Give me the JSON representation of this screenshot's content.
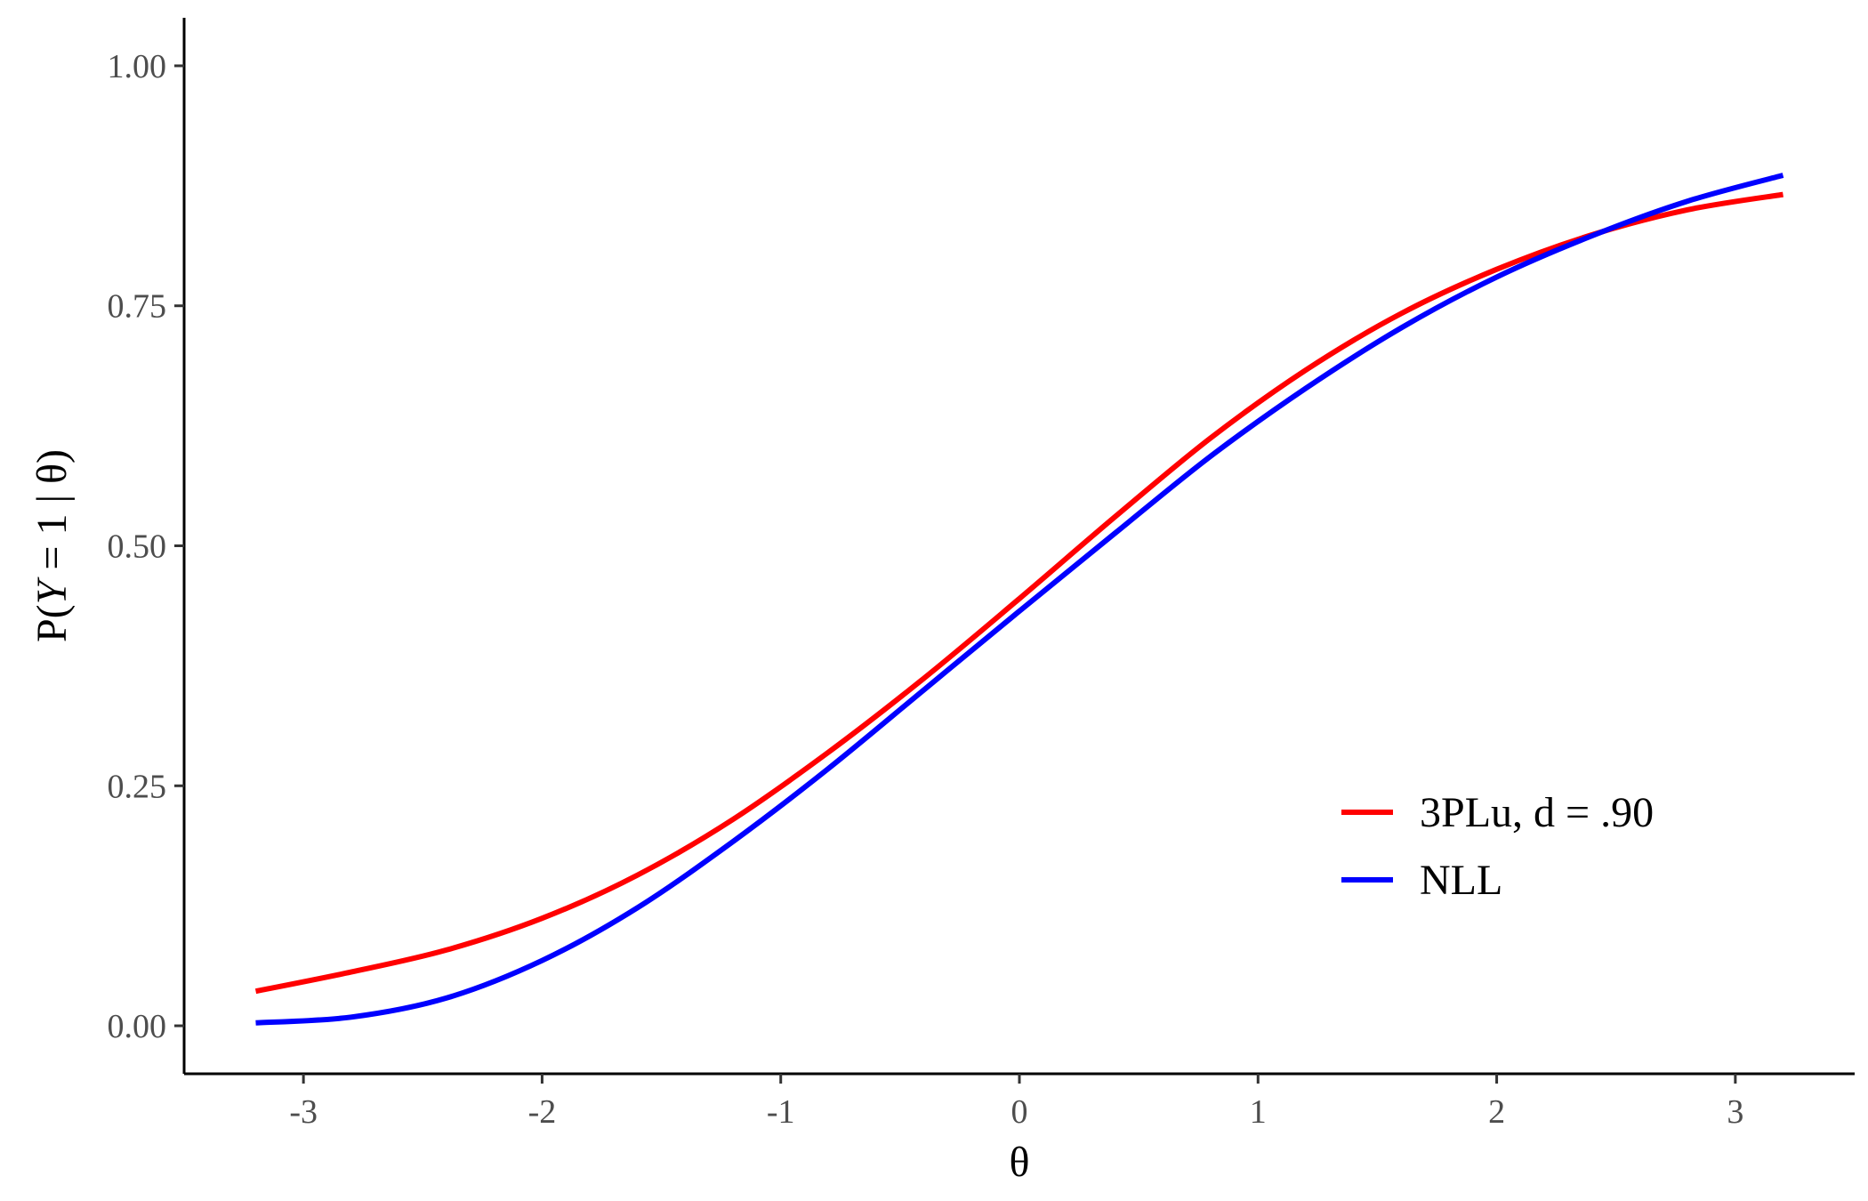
{
  "chart_data": {
    "type": "line",
    "title": "",
    "xlabel": "θ",
    "ylabel": "P(Y = 1 | θ)",
    "ylabel_parts": {
      "prefix": "P(",
      "variable": "Y",
      "suffix": " = 1 | θ)"
    },
    "xlim": [
      -3.5,
      3.5
    ],
    "ylim": [
      -0.05,
      1.05
    ],
    "x_ticks": [
      -3,
      -2,
      -1,
      0,
      1,
      2,
      3
    ],
    "x_tick_labels": [
      "-3",
      "-2",
      "-1",
      "0",
      "1",
      "2",
      "3"
    ],
    "y_ticks": [
      0,
      0.25,
      0.5,
      0.75,
      1
    ],
    "y_tick_labels": [
      "0.00",
      "0.25",
      "0.50",
      "0.75",
      "1.00"
    ],
    "grid": false,
    "legend_position": "bottom-right",
    "x": [
      -3.2,
      -2.8,
      -2.4,
      -2.0,
      -1.6,
      -1.2,
      -0.8,
      -0.4,
      0.0,
      0.4,
      0.8,
      1.2,
      1.6,
      2.0,
      2.4,
      2.8,
      3.2
    ],
    "series": [
      {
        "name": "3PLu, d = .90",
        "color": "#ff0000",
        "values": [
          0.036,
          0.056,
          0.079,
          0.112,
          0.157,
          0.215,
          0.285,
          0.362,
          0.445,
          0.53,
          0.612,
          0.683,
          0.742,
          0.788,
          0.824,
          0.85,
          0.866
        ]
      },
      {
        "name": "NLL",
        "color": "#0000ff",
        "values": [
          0.003,
          0.009,
          0.029,
          0.068,
          0.123,
          0.192,
          0.268,
          0.35,
          0.432,
          0.513,
          0.593,
          0.664,
          0.727,
          0.78,
          0.823,
          0.859,
          0.886
        ]
      }
    ]
  }
}
